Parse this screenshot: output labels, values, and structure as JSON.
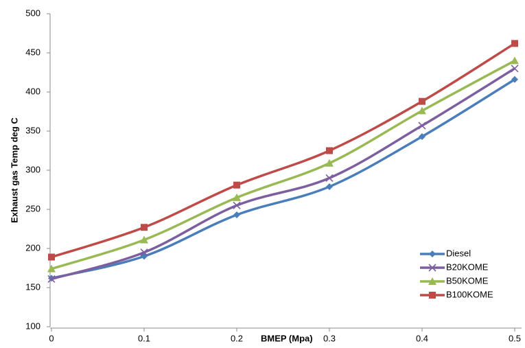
{
  "chart_data": {
    "type": "line",
    "x_label": "BMEP (Mpa)",
    "y_label": "Exhaust gas Temp  deg C",
    "x": [
      0,
      0.1,
      0.2,
      0.3,
      0.4,
      0.5
    ],
    "xlim": [
      0,
      0.5
    ],
    "xticks": [
      0,
      0.1,
      0.2,
      0.3,
      0.4,
      0.5
    ],
    "ylim": [
      100,
      500
    ],
    "yticks": [
      100,
      150,
      200,
      250,
      300,
      350,
      400,
      450,
      500
    ],
    "grid": false,
    "legend": "lower right",
    "series": [
      {
        "name": "Diesel",
        "color": "#4a7ebb",
        "marker": "diamond",
        "values": [
          162,
          190,
          243,
          279,
          343,
          416
        ]
      },
      {
        "name": "B20KOME",
        "color": "#7d5fa0",
        "marker": "x",
        "values": [
          161,
          195,
          255,
          290,
          357,
          430
        ]
      },
      {
        "name": "B50KOME",
        "color": "#98b954",
        "marker": "triangle",
        "values": [
          174,
          211,
          265,
          309,
          376,
          440
        ]
      },
      {
        "name": "B100KOME",
        "color": "#be4b48",
        "marker": "square",
        "values": [
          189,
          227,
          281,
          325,
          388,
          462
        ]
      }
    ]
  }
}
